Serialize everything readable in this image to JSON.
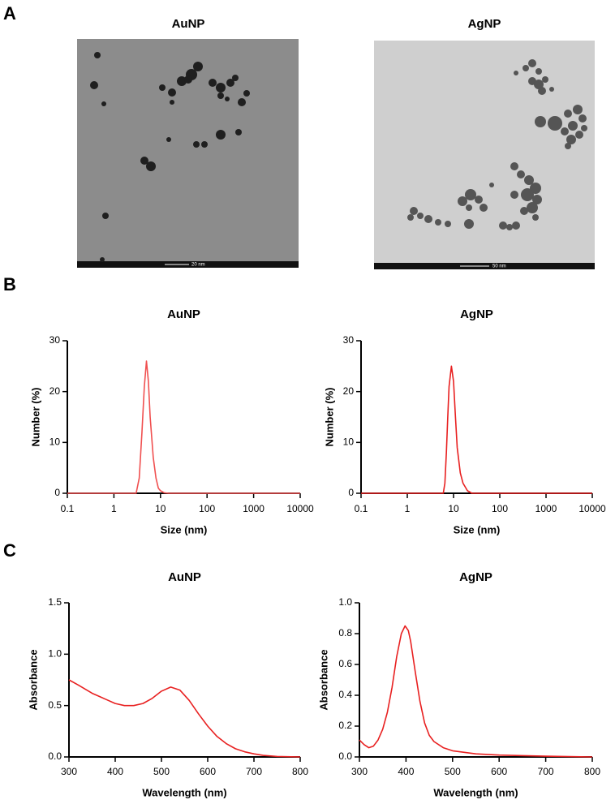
{
  "panel_labels": [
    "A",
    "B",
    "C"
  ],
  "images": [
    {
      "title": "AuNP",
      "scale_bar": "20 nm"
    },
    {
      "title": "AgNP",
      "scale_bar": "50 nm"
    }
  ],
  "chart_data": [
    {
      "type": "line",
      "title": "AuNP",
      "xlabel": "Size (nm)",
      "ylabel": "Number (%)",
      "xlog": true,
      "color": "#f05050",
      "x": [
        0.1,
        3.0,
        3.5,
        4.0,
        4.5,
        5.0,
        5.5,
        6.0,
        7.0,
        8.0,
        9.0,
        10,
        12,
        15,
        10000
      ],
      "values": [
        0,
        0,
        3,
        12,
        21,
        26,
        22,
        15,
        7,
        3,
        1,
        0.5,
        0.1,
        0,
        0
      ],
      "xlim": [
        0.1,
        10000
      ],
      "xticks": [
        0.1,
        1,
        10,
        100,
        1000,
        10000
      ],
      "ylim": [
        0,
        30
      ],
      "yticks": [
        0,
        10,
        20,
        30
      ]
    },
    {
      "type": "line",
      "title": "AgNP",
      "xlabel": "Size (nm)",
      "ylabel": "Number (%)",
      "xlog": true,
      "color": "#e82020",
      "x": [
        0.1,
        6.0,
        6.5,
        7.0,
        7.5,
        8.0,
        9.0,
        10,
        11,
        12,
        14,
        16,
        20,
        25,
        10000
      ],
      "values": [
        0,
        0,
        2,
        8,
        15,
        21,
        25,
        22,
        15,
        9,
        4,
        2,
        0.5,
        0,
        0
      ],
      "xlim": [
        0.1,
        10000
      ],
      "xticks": [
        0.1,
        1,
        10,
        100,
        1000,
        10000
      ],
      "ylim": [
        0,
        30
      ],
      "yticks": [
        0,
        10,
        20,
        30
      ]
    },
    {
      "type": "line",
      "title": "AuNP",
      "xlabel": "Wavelength (nm)",
      "ylabel": "Absorbance",
      "xlog": false,
      "color": "#e82020",
      "x": [
        300,
        320,
        350,
        380,
        400,
        420,
        440,
        460,
        480,
        500,
        520,
        540,
        560,
        580,
        600,
        620,
        640,
        660,
        680,
        700,
        720,
        750,
        800
      ],
      "values": [
        0.75,
        0.7,
        0.62,
        0.56,
        0.52,
        0.5,
        0.5,
        0.52,
        0.57,
        0.64,
        0.68,
        0.65,
        0.55,
        0.42,
        0.3,
        0.2,
        0.13,
        0.08,
        0.05,
        0.03,
        0.015,
        0.005,
        0
      ],
      "xlim": [
        300,
        800
      ],
      "xticks": [
        300,
        400,
        500,
        600,
        700,
        800
      ],
      "ylim": [
        0,
        1.5
      ],
      "yticks": [
        {
          "value": 0,
          "label": "0.0"
        },
        0.5,
        {
          "value": 1,
          "label": "1.0"
        },
        1.5
      ]
    },
    {
      "type": "line",
      "title": "AgNP",
      "xlabel": "Wavelength (nm)",
      "ylabel": "Absorbance",
      "xlog": false,
      "color": "#e82020",
      "x": [
        300,
        310,
        320,
        330,
        340,
        350,
        360,
        370,
        380,
        390,
        398,
        405,
        410,
        420,
        430,
        440,
        450,
        460,
        480,
        500,
        550,
        600,
        700,
        800
      ],
      "values": [
        0.11,
        0.08,
        0.06,
        0.07,
        0.11,
        0.18,
        0.29,
        0.45,
        0.65,
        0.8,
        0.85,
        0.82,
        0.75,
        0.55,
        0.36,
        0.22,
        0.14,
        0.1,
        0.06,
        0.04,
        0.02,
        0.012,
        0.005,
        0
      ],
      "xlim": [
        300,
        800
      ],
      "xticks": [
        300,
        400,
        500,
        600,
        700,
        800
      ],
      "ylim": [
        0,
        1
      ],
      "yticks": [
        {
          "value": 0,
          "label": "0.0"
        },
        0.2,
        0.4,
        0.6,
        0.8,
        {
          "value": 1,
          "label": "1.0"
        }
      ]
    }
  ]
}
